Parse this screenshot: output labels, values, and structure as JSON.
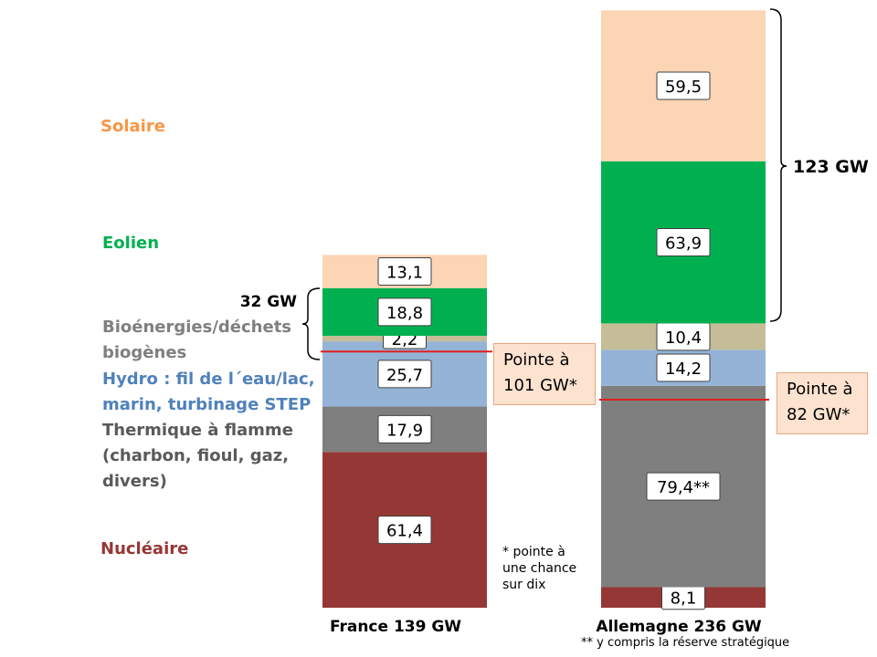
{
  "chart_data": {
    "type": "stacked-bar",
    "categories": [
      "France 139 GW",
      "Allemagne 236 GW"
    ],
    "series": [
      {
        "name": "Nucléaire",
        "values": [
          61.4,
          8.1
        ],
        "labels": [
          "61,4",
          "8,1"
        ],
        "color": "#953735"
      },
      {
        "name": "Thermique à flamme (charbon, fioul, gaz, divers)",
        "values": [
          17.9,
          79.4
        ],
        "labels": [
          "17,9",
          "79,4**"
        ],
        "color": "#7f7f7f"
      },
      {
        "name": "Hydro : fil de l´eau/lac, marin, turbinage STEP",
        "values": [
          25.7,
          14.2
        ],
        "labels": [
          "25,7",
          "14,2"
        ],
        "color": "#95b3d7"
      },
      {
        "name": "Bioénergies/déchets biogènes",
        "values": [
          2.2,
          10.4
        ],
        "labels": [
          "2,2",
          "10,4"
        ],
        "color": "#c4bd97"
      },
      {
        "name": "Eolien",
        "values": [
          18.8,
          63.9
        ],
        "labels": [
          "18,8",
          "63,9"
        ],
        "color": "#00b050"
      },
      {
        "name": "Solaire",
        "values": [
          13.1,
          59.5
        ],
        "labels": [
          "13,1",
          "59,5"
        ],
        "color": "#fcd5b5"
      }
    ],
    "peaks": [
      {
        "value": 101,
        "label": "Pointe à 101 GW*"
      },
      {
        "value": 82,
        "label": "Pointe à 82 GW*"
      }
    ],
    "brackets": [
      {
        "label": "32 GW"
      },
      {
        "label": "123 GW"
      }
    ],
    "footnotes": [
      "* pointe à une chance sur dix",
      "** y compris la réserve stratégique"
    ]
  },
  "legend": [
    {
      "lines": [
        "Solaire"
      ],
      "color": "#f79646"
    },
    {
      "lines": [
        "Eolien"
      ],
      "color": "#00b050"
    },
    {
      "lines": [
        "Bioénergies/déchets",
        "biogènes"
      ],
      "color": "#7f7f7f"
    },
    {
      "lines": [
        "Hydro : fil de l´eau/lac,",
        "marin, turbinage STEP"
      ],
      "color": "#4f81bd"
    },
    {
      "lines": [
        "Thermique à flamme",
        "(charbon, fioul, gaz,",
        "divers)"
      ],
      "color": "#595959"
    },
    {
      "lines": [
        "Nucléaire"
      ],
      "color": "#953735"
    }
  ],
  "peak_boxes": [
    {
      "lines": [
        "Pointe à",
        "101 GW*"
      ]
    },
    {
      "lines": [
        "Pointe à",
        "82 GW*"
      ]
    }
  ],
  "notes": {
    "france_peak_note": [
      "* pointe à",
      "une chance",
      "sur dix"
    ],
    "germany_reserve_note": "** y compris la réserve stratégique"
  }
}
